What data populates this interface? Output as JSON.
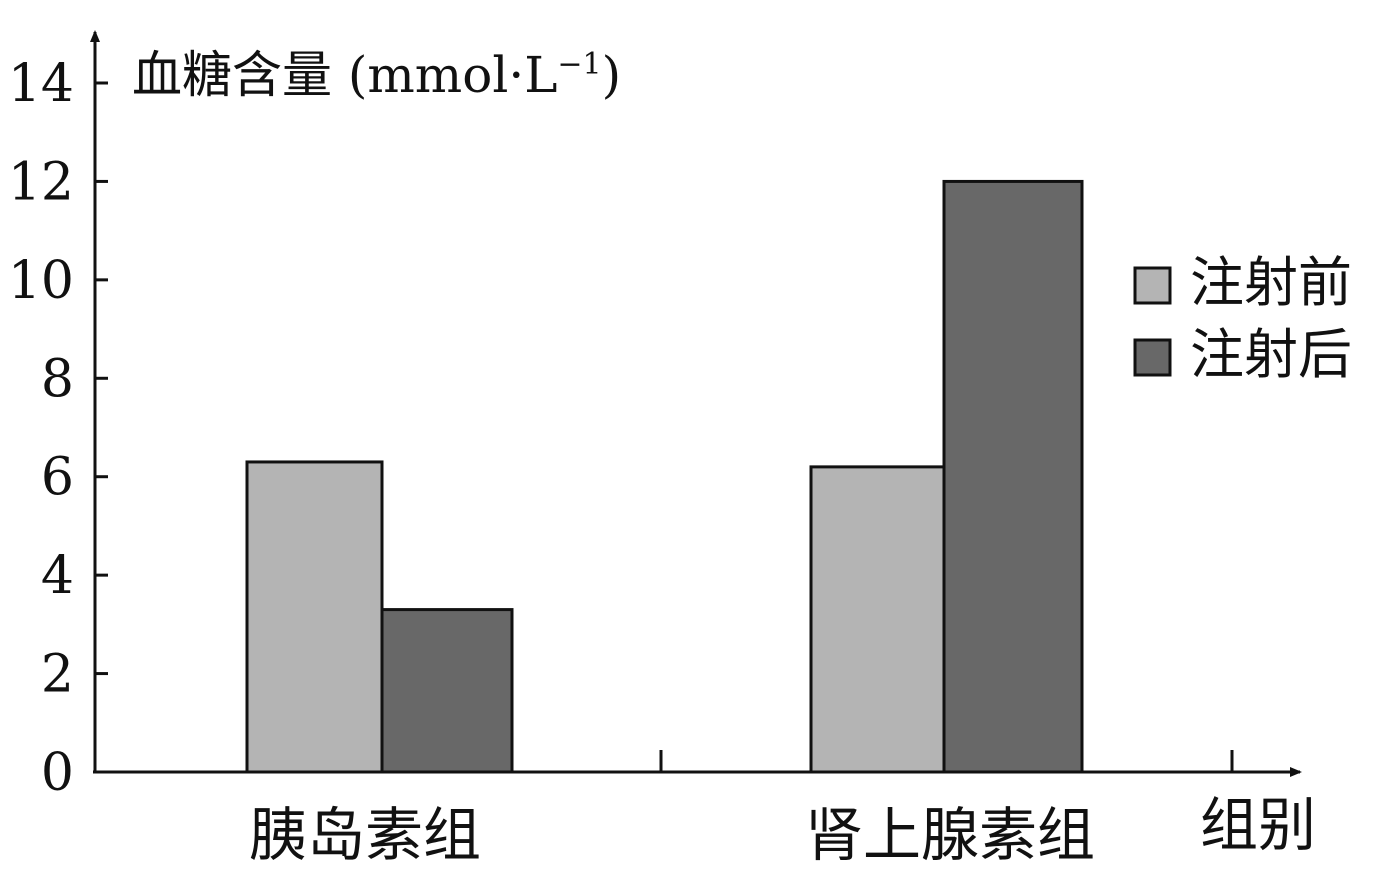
{
  "chart_data": {
    "type": "bar",
    "ylabel": "血糖含量 (mmol·L",
    "ylabel_sup": "−1",
    "ylabel_close": ")",
    "xlabel": "组别",
    "categories": [
      "胰岛素组",
      "肾上腺素组"
    ],
    "series": [
      {
        "name": "注射前",
        "values": [
          6.3,
          6.2
        ],
        "color": "#b4b4b4"
      },
      {
        "name": "注射后",
        "values": [
          3.3,
          12.0
        ],
        "color": "#686868"
      }
    ],
    "ylim": [
      0,
      14
    ],
    "yticks": [
      "0",
      "2",
      "4",
      "6",
      "8",
      "10",
      "12",
      "14"
    ],
    "grid": false,
    "legend_position": "right"
  }
}
